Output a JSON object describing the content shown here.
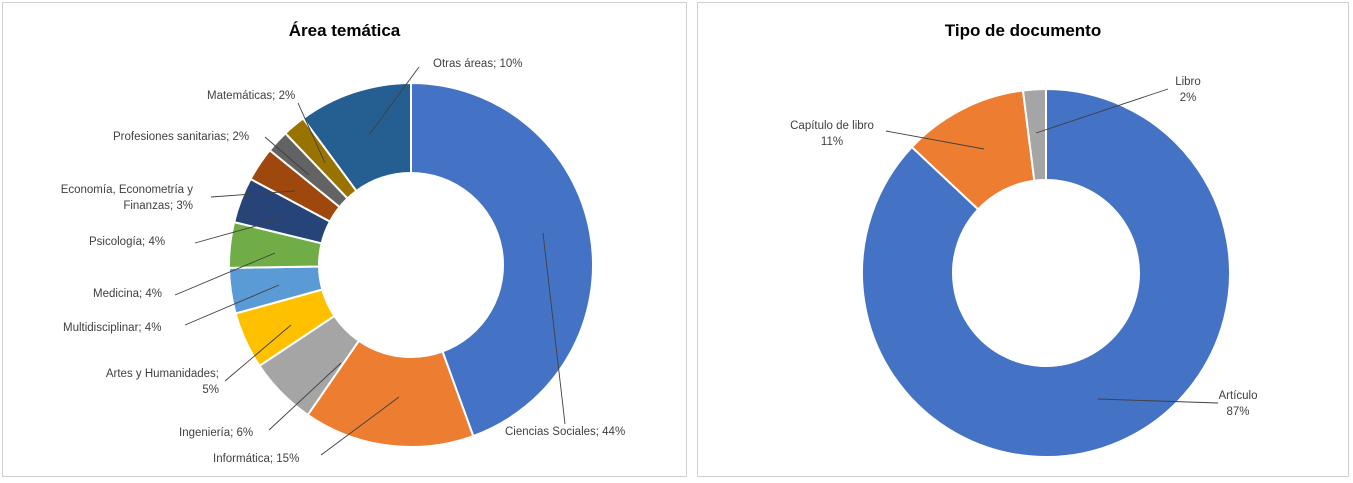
{
  "chart_data": [
    {
      "type": "pie",
      "title": "Área temática",
      "slices": [
        {
          "label": "Ciencias Sociales; 44%",
          "value": 44,
          "color": "#4472c4"
        },
        {
          "label": "Informática; 15%",
          "value": 15,
          "color": "#ed7d31"
        },
        {
          "label": "Ingeniería; 6%",
          "value": 6,
          "color": "#a5a5a5"
        },
        {
          "label": "Artes y Humanidades; 5%",
          "value": 5,
          "color": "#ffc000"
        },
        {
          "label": "Multidisciplinar; 4%",
          "value": 4,
          "color": "#5b9bd5"
        },
        {
          "label": "Medicina; 4%",
          "value": 4,
          "color": "#70ad47"
        },
        {
          "label": "Psicología; 4%",
          "value": 4,
          "color": "#264478"
        },
        {
          "label": "Economía, Econometría y Finanzas; 3%",
          "value": 3,
          "color": "#9e480e"
        },
        {
          "label": "Profesiones sanitarias; 2%",
          "value": 2,
          "color": "#636363"
        },
        {
          "label": "Matemáticas; 2%",
          "value": 2,
          "color": "#997300"
        },
        {
          "label": "Otras áreas; 10%",
          "value": 10,
          "color": "#255e91"
        }
      ]
    },
    {
      "type": "pie",
      "title": "Tipo de documento",
      "slices": [
        {
          "label": "Artículo 87%",
          "value": 87,
          "color": "#4472c4"
        },
        {
          "label": "Capítulo de libro 11%",
          "value": 11,
          "color": "#ed7d31"
        },
        {
          "label": "Libro 2%",
          "value": 2,
          "color": "#a5a5a5"
        }
      ]
    }
  ]
}
